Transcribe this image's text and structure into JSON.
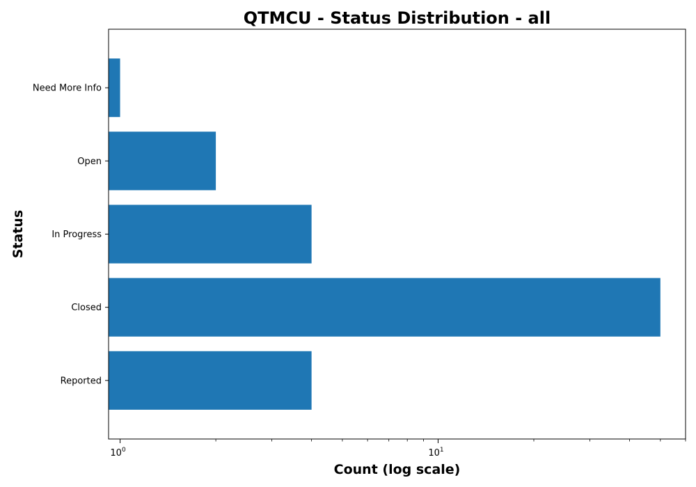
{
  "chart_data": {
    "type": "bar",
    "orientation": "horizontal",
    "title": "QTMCU - Status Distribution - all",
    "xlabel": "Count (log scale)",
    "ylabel": "Status",
    "x_scale": "log",
    "xlim": [
      0.92,
      60
    ],
    "categories": [
      "Reported",
      "Closed",
      "In Progress",
      "Open",
      "Need More Info"
    ],
    "values": [
      4,
      50,
      4,
      2,
      1
    ],
    "x_ticks": [
      {
        "base": "10",
        "exp": "0",
        "value": 1
      },
      {
        "base": "10",
        "exp": "1",
        "value": 10
      }
    ],
    "bar_color": "#1f77b4",
    "grid": false,
    "legend": "none"
  }
}
